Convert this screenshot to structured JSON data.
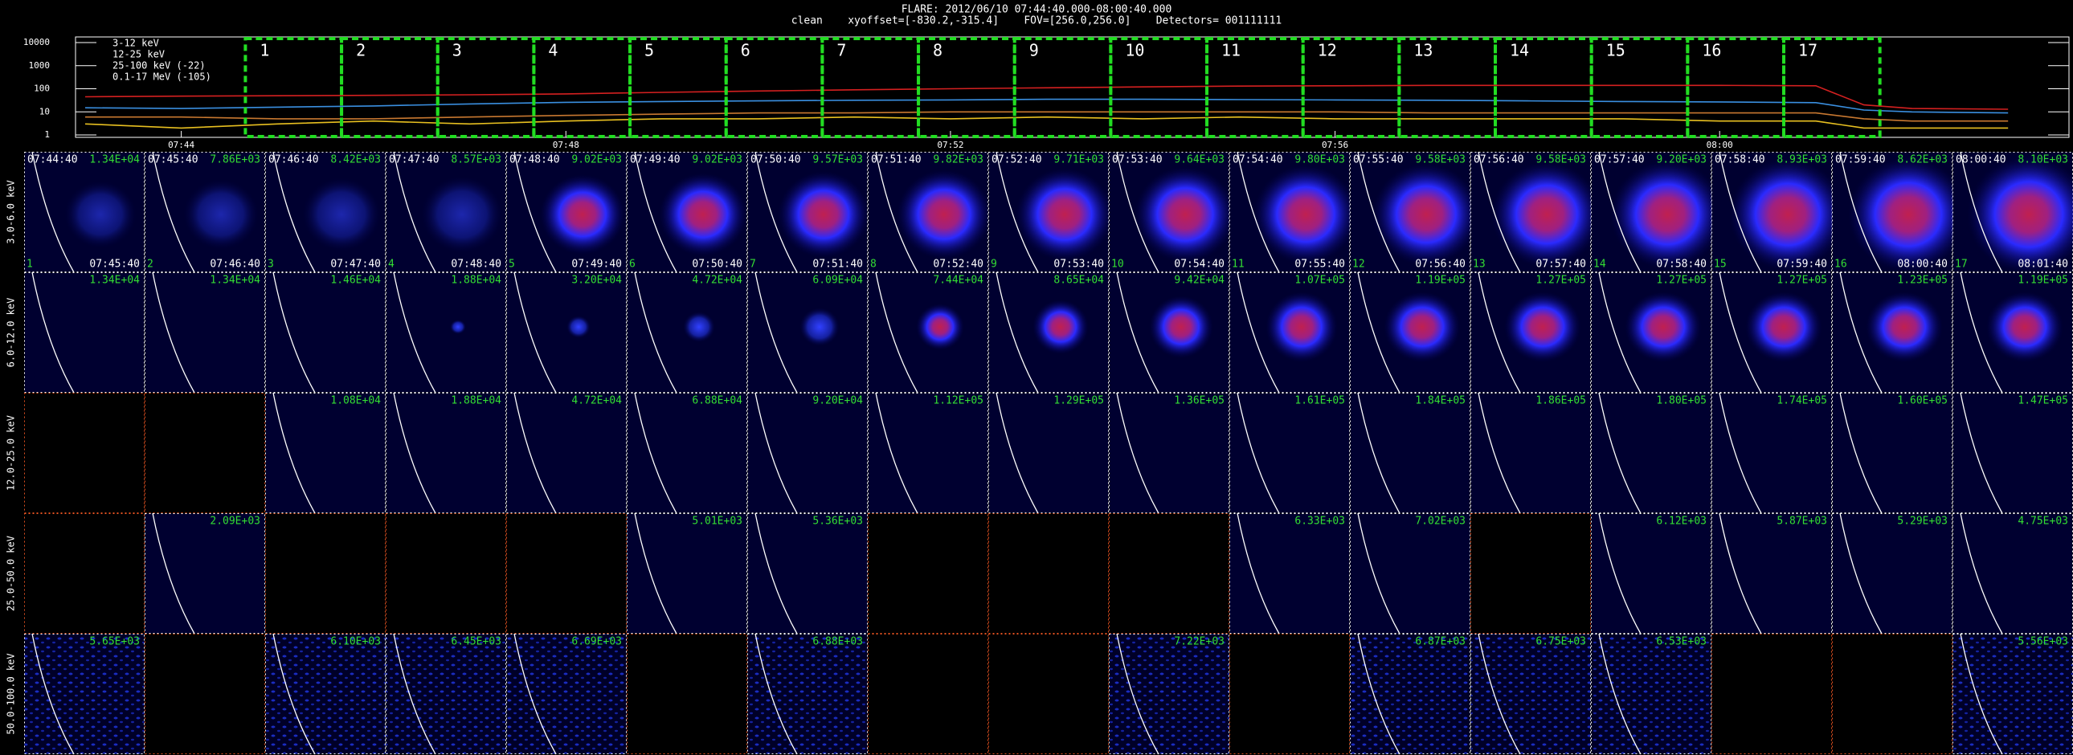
{
  "header": {
    "title": "FLARE: 2012/06/10 07:44:40.000-08:00:40.000",
    "subtitle": "clean    xyoffset=[-830.2,-315.4]    FOV=[256.0,256.0]    Detectors= 001111111"
  },
  "chart_data": {
    "type": "line",
    "x": [
      "07:43:00",
      "07:44:00",
      "07:45:00",
      "07:46:00",
      "07:47:00",
      "07:48:00",
      "07:49:00",
      "07:50:00",
      "07:51:00",
      "07:52:00",
      "07:53:00",
      "07:54:00",
      "07:55:00",
      "07:56:00",
      "07:57:00",
      "07:58:00",
      "07:59:00",
      "08:00:00",
      "08:01:00",
      "08:01:30",
      "08:02:00",
      "08:03:00"
    ],
    "series": [
      {
        "name": "3-12 keV",
        "color": "#d42020",
        "values": [
          45,
          48,
          50,
          52,
          55,
          60,
          70,
          80,
          90,
          100,
          110,
          120,
          130,
          135,
          140,
          140,
          140,
          140,
          135,
          20,
          14,
          13
        ]
      },
      {
        "name": "12-25 keV",
        "color": "#c87830",
        "values": [
          6,
          6,
          5,
          5,
          6,
          7,
          8,
          9,
          9,
          10,
          10,
          10,
          10,
          10,
          9,
          9,
          9,
          9,
          9,
          5,
          4,
          4
        ]
      },
      {
        "name": "25-100 keV (-22)",
        "color": "#e8c020",
        "values": [
          3,
          2,
          3,
          4,
          3,
          4,
          5,
          5,
          6,
          5,
          6,
          5,
          6,
          5,
          5,
          5,
          5,
          4,
          4,
          2,
          2,
          2
        ]
      },
      {
        "name": "0.1-17 MeV (-105)",
        "color": "#3a8fe0",
        "values": [
          15,
          14,
          16,
          18,
          22,
          26,
          28,
          30,
          32,
          33,
          35,
          35,
          34,
          33,
          32,
          30,
          28,
          27,
          25,
          12,
          10,
          9
        ]
      }
    ],
    "xlim": [
      "07:42:54",
      "08:03:38"
    ],
    "xticks": [
      "07:44",
      "07:48",
      "07:52",
      "07:56",
      "08:00"
    ],
    "ylim": [
      0.79,
      17500
    ],
    "yticks": [
      1,
      10,
      100,
      1000,
      10000
    ],
    "log_y": true,
    "interval_color": "#22dd22"
  },
  "panels": {
    "intervals": [
      "1",
      "2",
      "3",
      "4",
      "5",
      "6",
      "7",
      "8",
      "9",
      "10",
      "11",
      "12",
      "13",
      "14",
      "15",
      "16",
      "17"
    ],
    "start_times": [
      "07:44:40",
      "07:45:40",
      "07:46:40",
      "07:47:40",
      "07:48:40",
      "07:49:40",
      "07:50:40",
      "07:51:40",
      "07:52:40",
      "07:53:40",
      "07:54:40",
      "07:55:40",
      "07:56:40",
      "07:57:40",
      "07:58:40",
      "07:59:40",
      "08:00:40"
    ],
    "end_times": [
      "07:45:40",
      "07:46:40",
      "07:47:40",
      "07:48:40",
      "07:49:40",
      "07:50:40",
      "07:51:40",
      "07:52:40",
      "07:53:40",
      "07:54:40",
      "07:55:40",
      "07:56:40",
      "07:57:40",
      "07:58:40",
      "07:59:40",
      "08:00:40",
      "08:01:40"
    ],
    "rows": [
      {
        "label": "3.0-6.0 keV",
        "max": [
          "1.34E+04",
          "7.86E+03",
          "8.42E+03",
          "8.57E+03",
          "9.02E+03",
          "9.02E+03",
          "9.57E+03",
          "9.82E+03",
          "9.71E+03",
          "9.64E+03",
          "9.80E+03",
          "9.58E+03",
          "9.58E+03",
          "9.20E+03",
          "8.93E+03",
          "8.62E+03",
          "8.10E+03"
        ]
      },
      {
        "label": "6.0-12.0 keV",
        "max": [
          "1.34E+04",
          "1.34E+04",
          "1.46E+04",
          "1.88E+04",
          "3.20E+04",
          "4.72E+04",
          "6.09E+04",
          "7.44E+04",
          "8.65E+04",
          "9.42E+04",
          "1.07E+05",
          "1.19E+05",
          "1.27E+05",
          "1.27E+05",
          "1.27E+05",
          "1.23E+05",
          "1.19E+05"
        ]
      },
      {
        "label": "12.0-25.0 keV",
        "max": [
          null,
          null,
          "1.08E+04",
          "1.88E+04",
          "4.72E+04",
          "6.88E+04",
          "9.20E+04",
          "1.12E+05",
          "1.29E+05",
          "1.36E+05",
          "1.61E+05",
          "1.84E+05",
          "1.86E+05",
          "1.80E+05",
          "1.74E+05",
          "1.60E+05",
          "1.47E+05"
        ]
      },
      {
        "label": "25.0-50.0 keV",
        "max": [
          null,
          "2.09E+03",
          null,
          null,
          null,
          "5.01E+03",
          "5.36E+03",
          null,
          null,
          null,
          "6.33E+03",
          "7.02E+03",
          null,
          "6.12E+03",
          "5.87E+03",
          "5.29E+03",
          "4.75E+03"
        ]
      },
      {
        "label": "50.0-100.0 keV",
        "max": [
          "5.65E+03",
          null,
          "6.10E+03",
          "6.45E+03",
          "6.69E+03",
          null,
          "6.88E+03",
          null,
          null,
          "7.22E+03",
          null,
          "6.87E+03",
          "6.75E+03",
          "6.53E+03",
          null,
          null,
          "5.56E+03"
        ]
      }
    ]
  }
}
